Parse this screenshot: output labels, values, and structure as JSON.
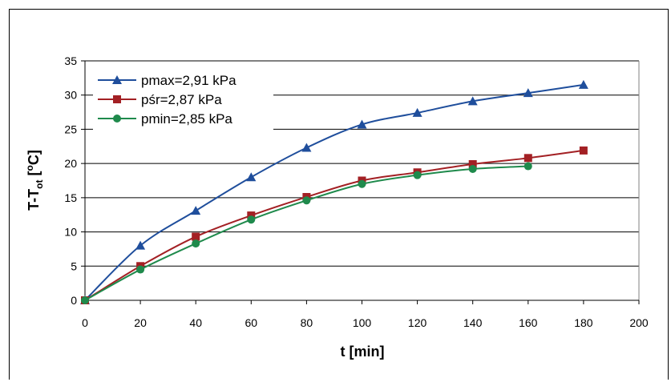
{
  "chart_data": {
    "type": "line",
    "xlabel": "t [min]",
    "ylabel_main": "T-T",
    "ylabel_sub": "ot",
    "ylabel_unit_open": " [",
    "ylabel_unit_deg": "o",
    "ylabel_unit_close": "C]",
    "xlim": [
      0,
      200
    ],
    "ylim": [
      0,
      35
    ],
    "xticks": [
      0,
      20,
      40,
      60,
      80,
      100,
      120,
      140,
      160,
      180,
      200
    ],
    "yticks": [
      0,
      5,
      10,
      15,
      20,
      25,
      30,
      35
    ],
    "grid": "horizontal",
    "legend_position": "top-left",
    "series": [
      {
        "name": "pmax=2,91 kPa",
        "marker": "triangle",
        "color": "#1f4e9c",
        "x": [
          0,
          20,
          40,
          60,
          80,
          100,
          120,
          140,
          160,
          180
        ],
        "y": [
          0,
          8.0,
          13.1,
          18.0,
          22.3,
          25.7,
          27.4,
          29.1,
          30.3,
          31.5
        ]
      },
      {
        "name": "pśr=2,87 kPa",
        "marker": "square",
        "color": "#a32024",
        "x": [
          0,
          20,
          40,
          60,
          80,
          100,
          120,
          140,
          160,
          180
        ],
        "y": [
          0,
          5.0,
          9.3,
          12.4,
          15.1,
          17.5,
          18.7,
          19.9,
          20.8,
          21.9
        ]
      },
      {
        "name": "pmin=2,85 kPa",
        "marker": "circle",
        "color": "#1f8a4c",
        "x": [
          0,
          20,
          40,
          60,
          80,
          100,
          120,
          140,
          160
        ],
        "y": [
          0,
          4.5,
          8.3,
          11.8,
          14.6,
          17.0,
          18.3,
          19.2,
          19.6
        ]
      }
    ]
  }
}
